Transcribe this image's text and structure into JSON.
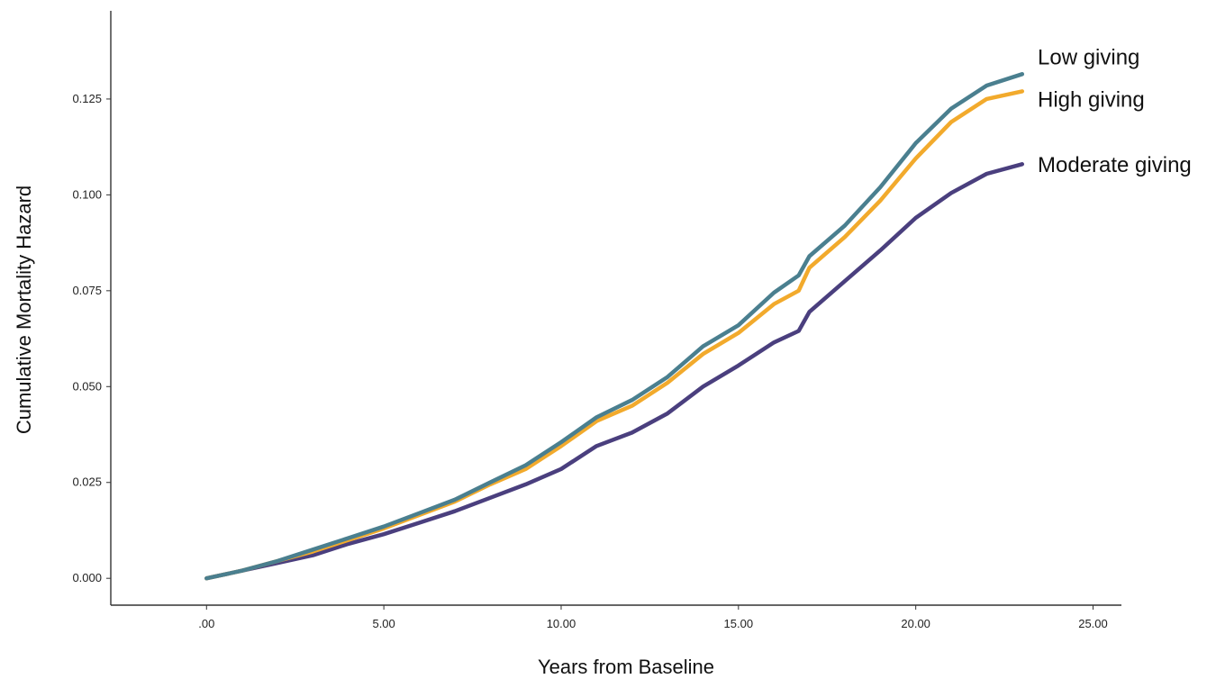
{
  "chart_data": {
    "type": "line",
    "title": "",
    "xlabel": "Years from Baseline",
    "ylabel": "Cumulative Mortality Hazard",
    "xlim": [
      -2.7,
      25.8
    ],
    "ylim": [
      -0.007,
      0.148
    ],
    "x_ticks": [
      0,
      5,
      10,
      15,
      20,
      25
    ],
    "x_tick_labels": [
      ".00",
      "5.00",
      "10.00",
      "15.00",
      "20.00",
      "25.00"
    ],
    "y_ticks": [
      0,
      0.025,
      0.05,
      0.075,
      0.1,
      0.125
    ],
    "y_tick_labels": [
      "0.000",
      "0.025",
      "0.050",
      "0.075",
      "0.100",
      "0.125"
    ],
    "grid": false,
    "legend": "direct labels at right end of lines",
    "series": [
      {
        "name": "Low giving",
        "color": "#4a7f8f",
        "x": [
          0,
          1,
          2,
          3,
          4,
          5,
          6,
          7,
          8,
          9,
          10,
          11,
          12,
          13,
          14,
          15,
          16,
          16.7,
          17,
          18,
          19,
          20,
          21,
          22,
          23
        ],
        "y": [
          0.0,
          0.002,
          0.0045,
          0.0075,
          0.0105,
          0.0135,
          0.017,
          0.0205,
          0.025,
          0.0295,
          0.0355,
          0.042,
          0.0465,
          0.0525,
          0.0605,
          0.066,
          0.0745,
          0.079,
          0.084,
          0.092,
          0.102,
          0.1135,
          0.1225,
          0.1285,
          0.1315
        ]
      },
      {
        "name": "High giving",
        "color": "#f2aa2c",
        "x": [
          0,
          1,
          2,
          3,
          4,
          5,
          6,
          7,
          8,
          9,
          10,
          11,
          12,
          13,
          14,
          15,
          16,
          16.7,
          17,
          18,
          19,
          20,
          21,
          22,
          23
        ],
        "y": [
          0.0,
          0.002,
          0.0045,
          0.007,
          0.01,
          0.013,
          0.0165,
          0.02,
          0.0245,
          0.0285,
          0.0345,
          0.041,
          0.045,
          0.051,
          0.0585,
          0.064,
          0.0715,
          0.075,
          0.081,
          0.089,
          0.0985,
          0.1095,
          0.119,
          0.125,
          0.127
        ]
      },
      {
        "name": "Moderate giving",
        "color": "#4a3f7e",
        "x": [
          0,
          1,
          2,
          3,
          4,
          5,
          6,
          7,
          8,
          9,
          10,
          11,
          12,
          13,
          14,
          15,
          16,
          16.7,
          17,
          18,
          19,
          20,
          21,
          22,
          23
        ],
        "y": [
          0.0,
          0.002,
          0.004,
          0.006,
          0.009,
          0.0115,
          0.0145,
          0.0175,
          0.021,
          0.0245,
          0.0285,
          0.0345,
          0.038,
          0.043,
          0.05,
          0.0555,
          0.0615,
          0.0645,
          0.0695,
          0.0775,
          0.0855,
          0.094,
          0.1005,
          0.1055,
          0.108
        ]
      }
    ],
    "series_label_y": [
      0.1355,
      0.1245,
      0.1075
    ]
  }
}
